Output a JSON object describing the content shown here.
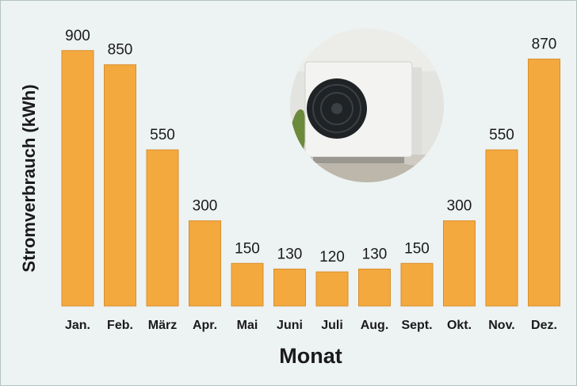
{
  "chart_data": {
    "type": "bar",
    "x_label": "Monat",
    "y_label": "Stromverbrauch (kWh)",
    "categories": [
      "Jan.",
      "Feb.",
      "März",
      "Apr.",
      "Mai",
      "Juni",
      "Juli",
      "Aug.",
      "Sept.",
      "Okt.",
      "Nov.",
      "Dez."
    ],
    "values": [
      900,
      850,
      550,
      300,
      150,
      130,
      120,
      130,
      150,
      300,
      550,
      870
    ],
    "color": "#f4a93f"
  }
}
